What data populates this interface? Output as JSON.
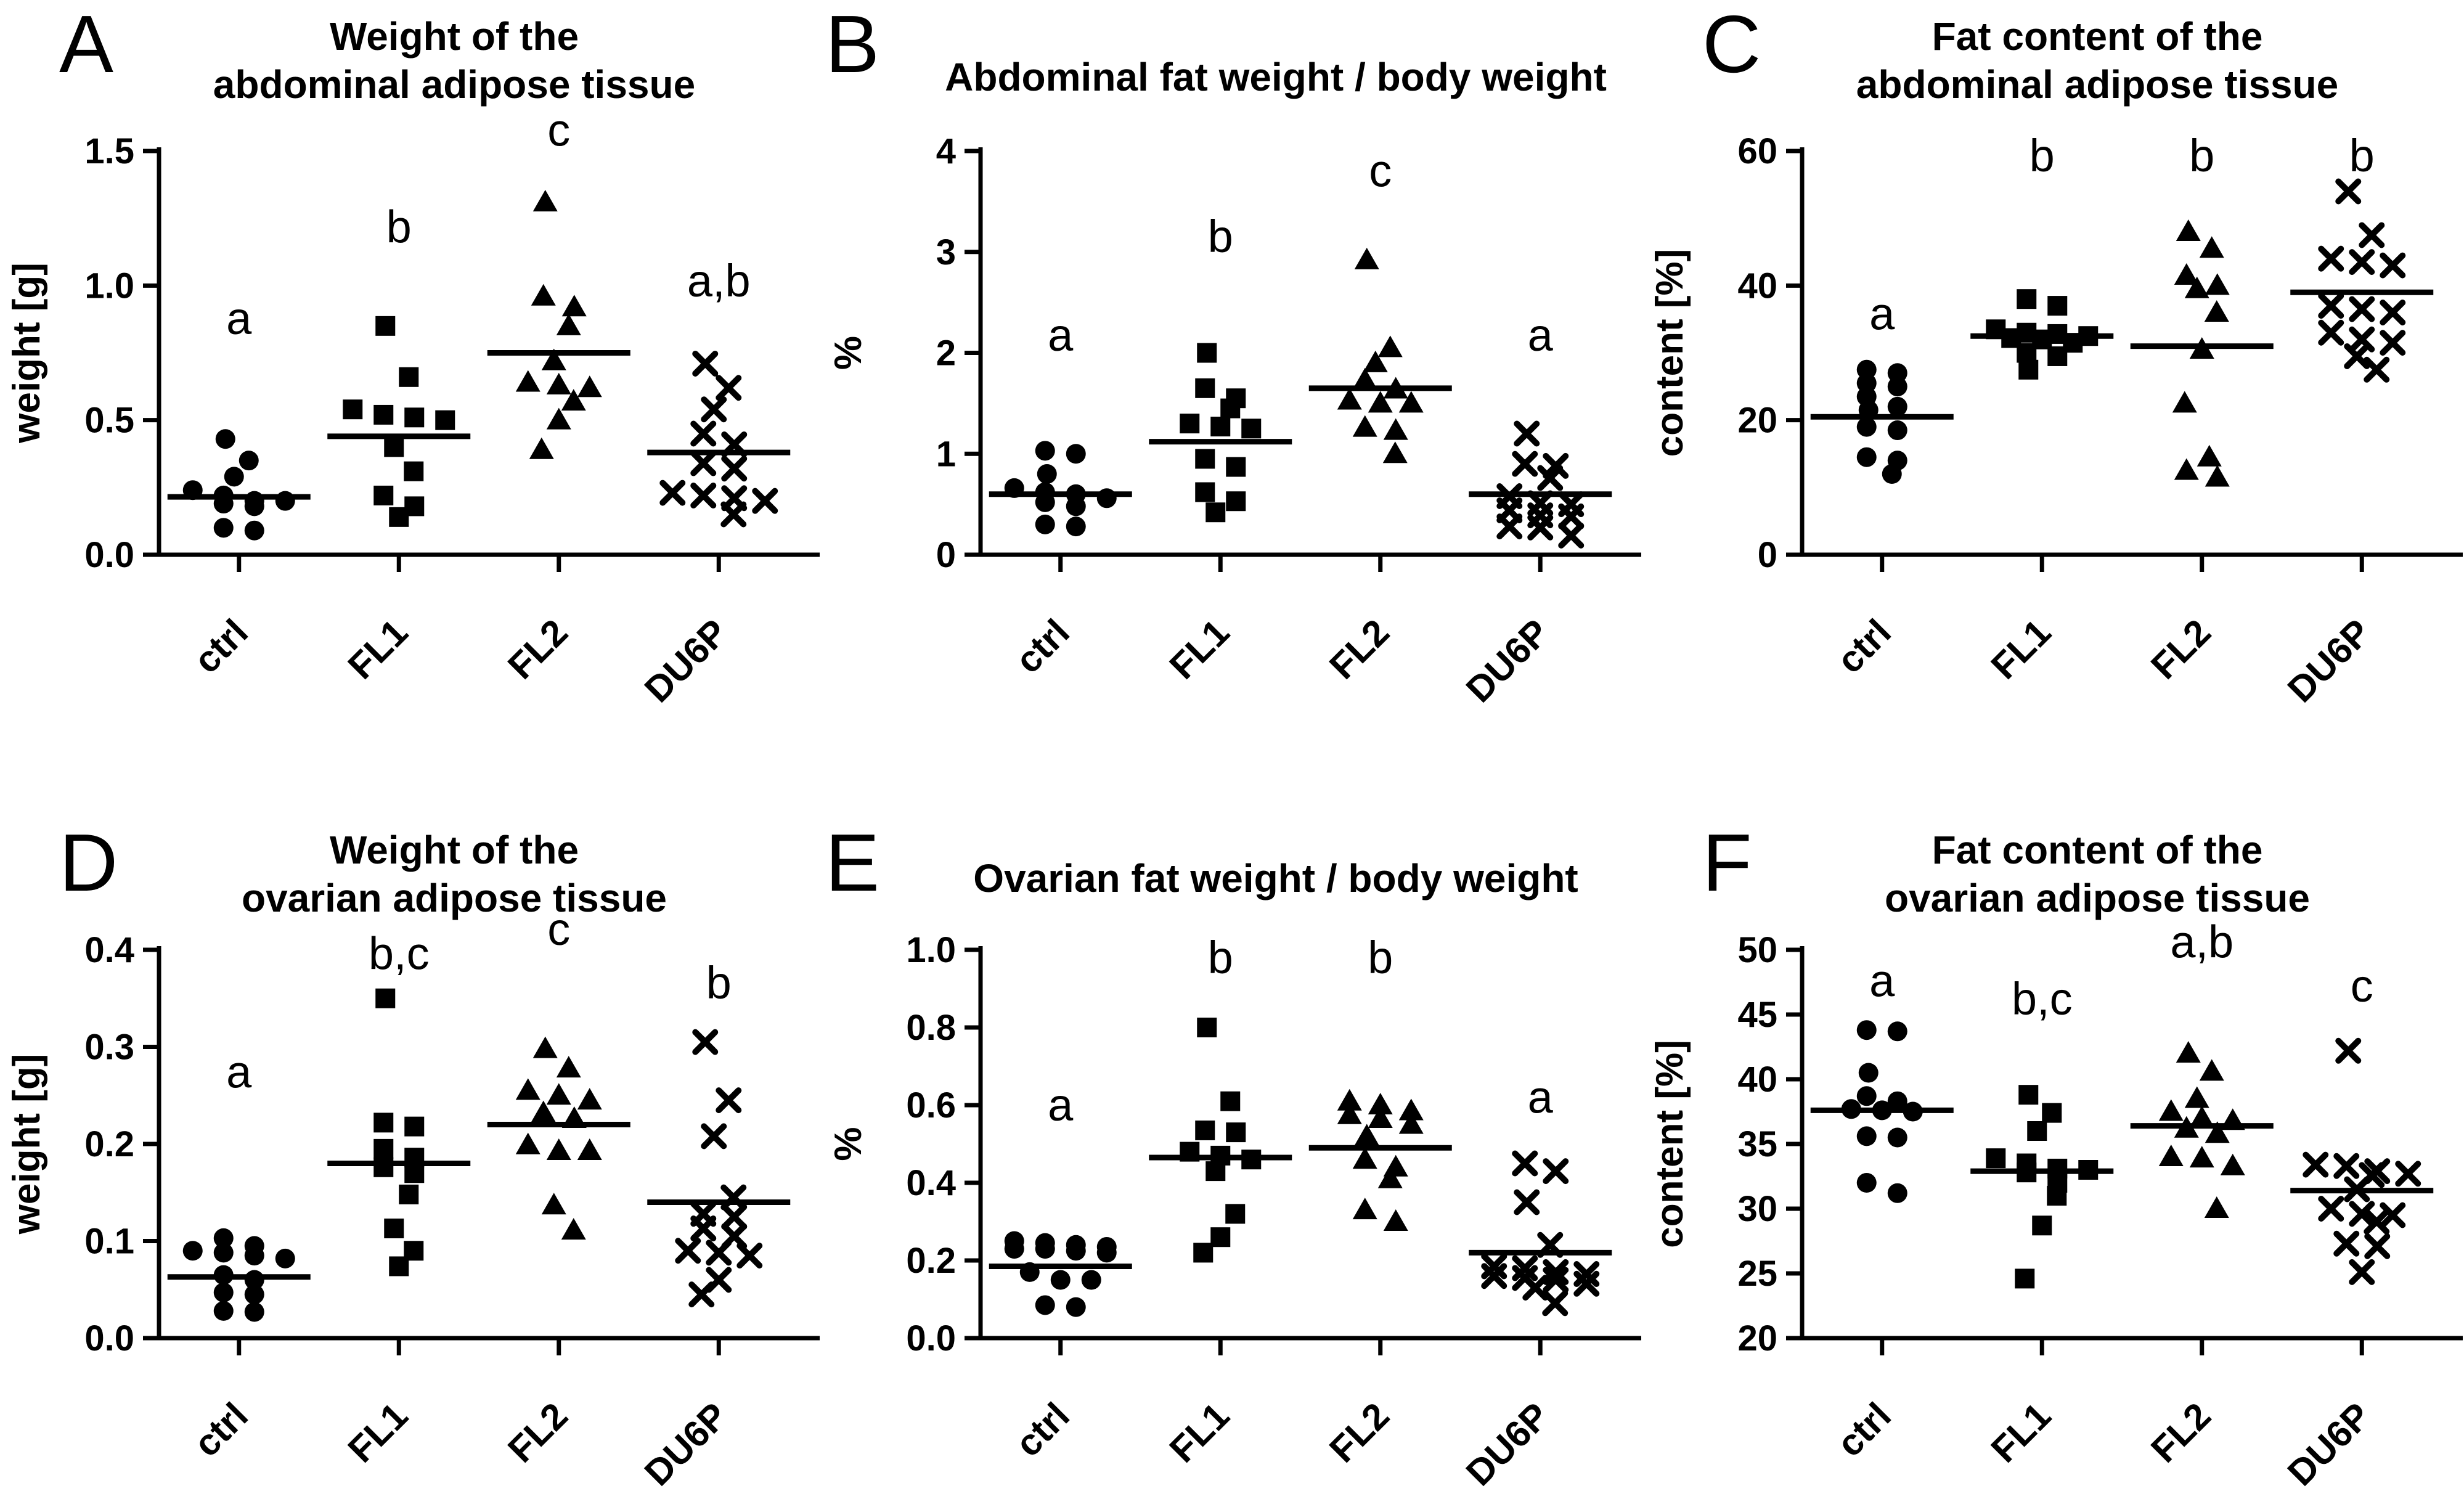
{
  "figure": {
    "background_color": "#ffffff",
    "ink_color": "#000000",
    "groups": [
      "ctrl",
      "FL1",
      "FL2",
      "DU6P"
    ],
    "marker_legend": {
      "ctrl": "filled-circle",
      "FL1": "filled-square",
      "FL2": "filled-triangle",
      "DU6P": "x-cross"
    }
  },
  "chart_data": [
    {
      "type": "scatter",
      "letter": "A",
      "title": "Weight of the\nabdominal adipose tissue",
      "ylabel": "weight [g]",
      "ylim": [
        0,
        1.5
      ],
      "ytick_values": [
        0,
        0.5,
        1.0,
        1.5
      ],
      "ytick_labels": [
        "0.0",
        "0.5",
        "1.0",
        "1.5"
      ],
      "categories": [
        "ctrl",
        "FL1",
        "FL2",
        "DU6P"
      ],
      "grid": false,
      "series": [
        {
          "name": "ctrl",
          "marker": "circle",
          "significance": "a",
          "sig_y": 0.82,
          "mean": 0.215,
          "values": [
            0.43,
            0.35,
            0.29,
            0.24,
            0.22,
            0.2,
            0.2,
            0.19,
            0.18,
            0.1,
            0.09
          ]
        },
        {
          "name": "FL1",
          "marker": "square",
          "significance": "b",
          "sig_y": 1.16,
          "mean": 0.44,
          "values": [
            0.85,
            0.66,
            0.54,
            0.52,
            0.51,
            0.5,
            0.4,
            0.31,
            0.22,
            0.18,
            0.14
          ]
        },
        {
          "name": "FL2",
          "marker": "triangle",
          "significance": "c",
          "sig_y": 1.52,
          "mean": 0.75,
          "values": [
            1.31,
            0.96,
            0.92,
            0.85,
            0.72,
            0.64,
            0.63,
            0.62,
            0.57,
            0.5,
            0.39
          ]
        },
        {
          "name": "DU6P",
          "marker": "x",
          "significance": "a,b",
          "sig_y": 0.96,
          "mean": 0.38,
          "values": [
            0.71,
            0.62,
            0.54,
            0.45,
            0.41,
            0.34,
            0.32,
            0.23,
            0.22,
            0.21,
            0.2,
            0.15
          ]
        }
      ]
    },
    {
      "type": "scatter",
      "letter": "B",
      "title": "Abdominal fat weight / body weight",
      "ylabel": "%",
      "ylim": [
        0,
        4
      ],
      "ytick_values": [
        0,
        1,
        2,
        3,
        4
      ],
      "ytick_labels": [
        "0",
        "1",
        "2",
        "3",
        "4"
      ],
      "categories": [
        "ctrl",
        "FL1",
        "FL2",
        "DU6P"
      ],
      "grid": false,
      "series": [
        {
          "name": "ctrl",
          "marker": "circle",
          "significance": "a",
          "sig_y": 2.02,
          "mean": 0.6,
          "values": [
            1.03,
            1.0,
            0.8,
            0.66,
            0.62,
            0.6,
            0.56,
            0.52,
            0.48,
            0.3,
            0.28
          ]
        },
        {
          "name": "FL1",
          "marker": "square",
          "significance": "b",
          "sig_y": 3.0,
          "mean": 1.12,
          "values": [
            2.0,
            1.65,
            1.55,
            1.45,
            1.3,
            1.27,
            1.25,
            0.95,
            0.87,
            0.62,
            0.53,
            0.42
          ]
        },
        {
          "name": "FL2",
          "marker": "triangle",
          "significance": "c",
          "sig_y": 3.65,
          "mean": 1.65,
          "values": [
            2.92,
            2.05,
            1.9,
            1.73,
            1.64,
            1.53,
            1.5,
            1.5,
            1.26,
            1.23,
            1.0
          ]
        },
        {
          "name": "DU6P",
          "marker": "x",
          "significance": "a",
          "sig_y": 2.02,
          "mean": 0.6,
          "values": [
            1.2,
            0.9,
            0.88,
            0.76,
            0.58,
            0.51,
            0.5,
            0.44,
            0.39,
            0.38,
            0.28,
            0.27,
            0.19
          ]
        }
      ]
    },
    {
      "type": "scatter",
      "letter": "C",
      "title": "Fat content of the\nabdominal adipose tissue",
      "ylabel": "content [%]",
      "ylim": [
        0,
        60
      ],
      "ytick_values": [
        0,
        20,
        40,
        60
      ],
      "ytick_labels": [
        "0",
        "20",
        "40",
        "60"
      ],
      "categories": [
        "ctrl",
        "FL1",
        "FL2",
        "DU6P"
      ],
      "grid": false,
      "series": [
        {
          "name": "ctrl",
          "marker": "circle",
          "significance": "a",
          "sig_y": 33.5,
          "mean": 20.5,
          "values": [
            27.5,
            27.0,
            25.5,
            25.0,
            23.5,
            22.0,
            21.5,
            19.0,
            18.5,
            14.5,
            14.0,
            12.0
          ]
        },
        {
          "name": "FL1",
          "marker": "square",
          "significance": "b",
          "sig_y": 57.0,
          "mean": 32.5,
          "values": [
            38.0,
            37.0,
            33.5,
            33.0,
            32.8,
            32.5,
            32.2,
            32.0,
            31.5,
            30.0,
            29.5,
            27.5
          ]
        },
        {
          "name": "FL2",
          "marker": "triangle",
          "significance": "b",
          "sig_y": 57.0,
          "mean": 31.0,
          "values": [
            48.0,
            45.5,
            41.5,
            40.0,
            39.5,
            36.0,
            30.5,
            22.5,
            14.5,
            12.5,
            11.5
          ]
        },
        {
          "name": "DU6P",
          "marker": "x",
          "significance": "b",
          "sig_y": 57.0,
          "mean": 39.0,
          "values": [
            54.0,
            47.5,
            44.0,
            43.5,
            43.0,
            37.0,
            36.5,
            36.0,
            33.0,
            32.0,
            31.5,
            29.5,
            27.5
          ]
        }
      ]
    },
    {
      "type": "scatter",
      "letter": "D",
      "title": "Weight of the\novarian adipose tissue",
      "ylabel": "weight [g]",
      "ylim": [
        0,
        0.4
      ],
      "ytick_values": [
        0,
        0.1,
        0.2,
        0.3,
        0.4
      ],
      "ytick_labels": [
        "0.0",
        "0.1",
        "0.2",
        "0.3",
        "0.4"
      ],
      "categories": [
        "ctrl",
        "FL1",
        "FL2",
        "DU6P"
      ],
      "grid": false,
      "series": [
        {
          "name": "ctrl",
          "marker": "circle",
          "significance": "a",
          "sig_y": 0.258,
          "mean": 0.063,
          "values": [
            0.103,
            0.095,
            0.09,
            0.088,
            0.085,
            0.082,
            0.065,
            0.06,
            0.047,
            0.045,
            0.028,
            0.027
          ]
        },
        {
          "name": "FL1",
          "marker": "square",
          "significance": "b,c",
          "sig_y": 0.38,
          "mean": 0.18,
          "values": [
            0.35,
            0.222,
            0.218,
            0.195,
            0.186,
            0.176,
            0.17,
            0.148,
            0.113,
            0.09,
            0.074
          ]
        },
        {
          "name": "FL2",
          "marker": "triangle",
          "significance": "c",
          "sig_y": 0.405,
          "mean": 0.22,
          "values": [
            0.298,
            0.278,
            0.255,
            0.25,
            0.245,
            0.232,
            0.226,
            0.199,
            0.193,
            0.193,
            0.137,
            0.111
          ]
        },
        {
          "name": "DU6P",
          "marker": "x",
          "significance": "b",
          "sig_y": 0.35,
          "mean": 0.14,
          "values": [
            0.305,
            0.245,
            0.208,
            0.145,
            0.128,
            0.125,
            0.113,
            0.105,
            0.09,
            0.088,
            0.085,
            0.06,
            0.045
          ]
        }
      ]
    },
    {
      "type": "scatter",
      "letter": "E",
      "title": "Ovarian fat weight / body weight",
      "ylabel": "%",
      "ylim": [
        0,
        1.0
      ],
      "ytick_values": [
        0,
        0.2,
        0.4,
        0.6,
        0.8,
        1.0
      ],
      "ytick_labels": [
        "0.0",
        "0.2",
        "0.4",
        "0.6",
        "0.8",
        "1.0"
      ],
      "categories": [
        "ctrl",
        "FL1",
        "FL2",
        "DU6P"
      ],
      "grid": false,
      "series": [
        {
          "name": "ctrl",
          "marker": "circle",
          "significance": "a",
          "sig_y": 0.56,
          "mean": 0.185,
          "values": [
            0.25,
            0.245,
            0.24,
            0.235,
            0.23,
            0.23,
            0.225,
            0.22,
            0.17,
            0.15,
            0.15,
            0.085,
            0.08
          ]
        },
        {
          "name": "FL1",
          "marker": "square",
          "significance": "b",
          "sig_y": 0.94,
          "mean": 0.465,
          "values": [
            0.8,
            0.61,
            0.535,
            0.53,
            0.48,
            0.47,
            0.46,
            0.43,
            0.32,
            0.26,
            0.22
          ]
        },
        {
          "name": "FL2",
          "marker": "triangle",
          "significance": "b",
          "sig_y": 0.94,
          "mean": 0.49,
          "values": [
            0.61,
            0.6,
            0.585,
            0.575,
            0.565,
            0.55,
            0.52,
            0.46,
            0.44,
            0.41,
            0.33,
            0.3
          ]
        },
        {
          "name": "DU6P",
          "marker": "x",
          "significance": "a",
          "sig_y": 0.58,
          "mean": 0.22,
          "values": [
            0.45,
            0.43,
            0.35,
            0.24,
            0.185,
            0.18,
            0.17,
            0.165,
            0.16,
            0.155,
            0.15,
            0.14,
            0.13,
            0.09
          ]
        }
      ]
    },
    {
      "type": "scatter",
      "letter": "F",
      "title": "Fat content of the\novarian adipose tissue",
      "ylabel": "content [%]",
      "ylim": [
        20,
        50
      ],
      "ytick_values": [
        20,
        25,
        30,
        35,
        40,
        45,
        50
      ],
      "ytick_labels": [
        "20",
        "25",
        "30",
        "35",
        "40",
        "45",
        "50"
      ],
      "categories": [
        "ctrl",
        "FL1",
        "FL2",
        "DU6P"
      ],
      "grid": false,
      "series": [
        {
          "name": "ctrl",
          "marker": "circle",
          "significance": "a",
          "sig_y": 46.4,
          "mean": 37.6,
          "values": [
            43.8,
            43.7,
            40.5,
            38.7,
            38.3,
            37.7,
            37.6,
            37.5,
            35.6,
            35.5,
            32.0,
            31.2
          ]
        },
        {
          "name": "FL1",
          "marker": "square",
          "significance": "b,c",
          "sig_y": 45.0,
          "mean": 32.9,
          "values": [
            38.8,
            37.4,
            36.0,
            33.9,
            33.5,
            33.1,
            33.0,
            32.8,
            32.0,
            31.0,
            28.7,
            24.6
          ]
        },
        {
          "name": "FL2",
          "marker": "triangle",
          "significance": "a,b",
          "sig_y": 49.4,
          "mean": 36.4,
          "values": [
            42.0,
            40.6,
            38.5,
            37.5,
            37.0,
            36.8,
            36.2,
            35.8,
            34.0,
            33.9,
            33.3,
            30.0
          ]
        },
        {
          "name": "DU6P",
          "marker": "x",
          "significance": "c",
          "sig_y": 46.0,
          "mean": 31.4,
          "values": [
            42.2,
            33.4,
            33.3,
            32.9,
            32.7,
            32.6,
            31.5,
            30.0,
            29.6,
            29.5,
            29.0,
            27.3,
            27.1,
            25.1
          ]
        }
      ]
    }
  ]
}
